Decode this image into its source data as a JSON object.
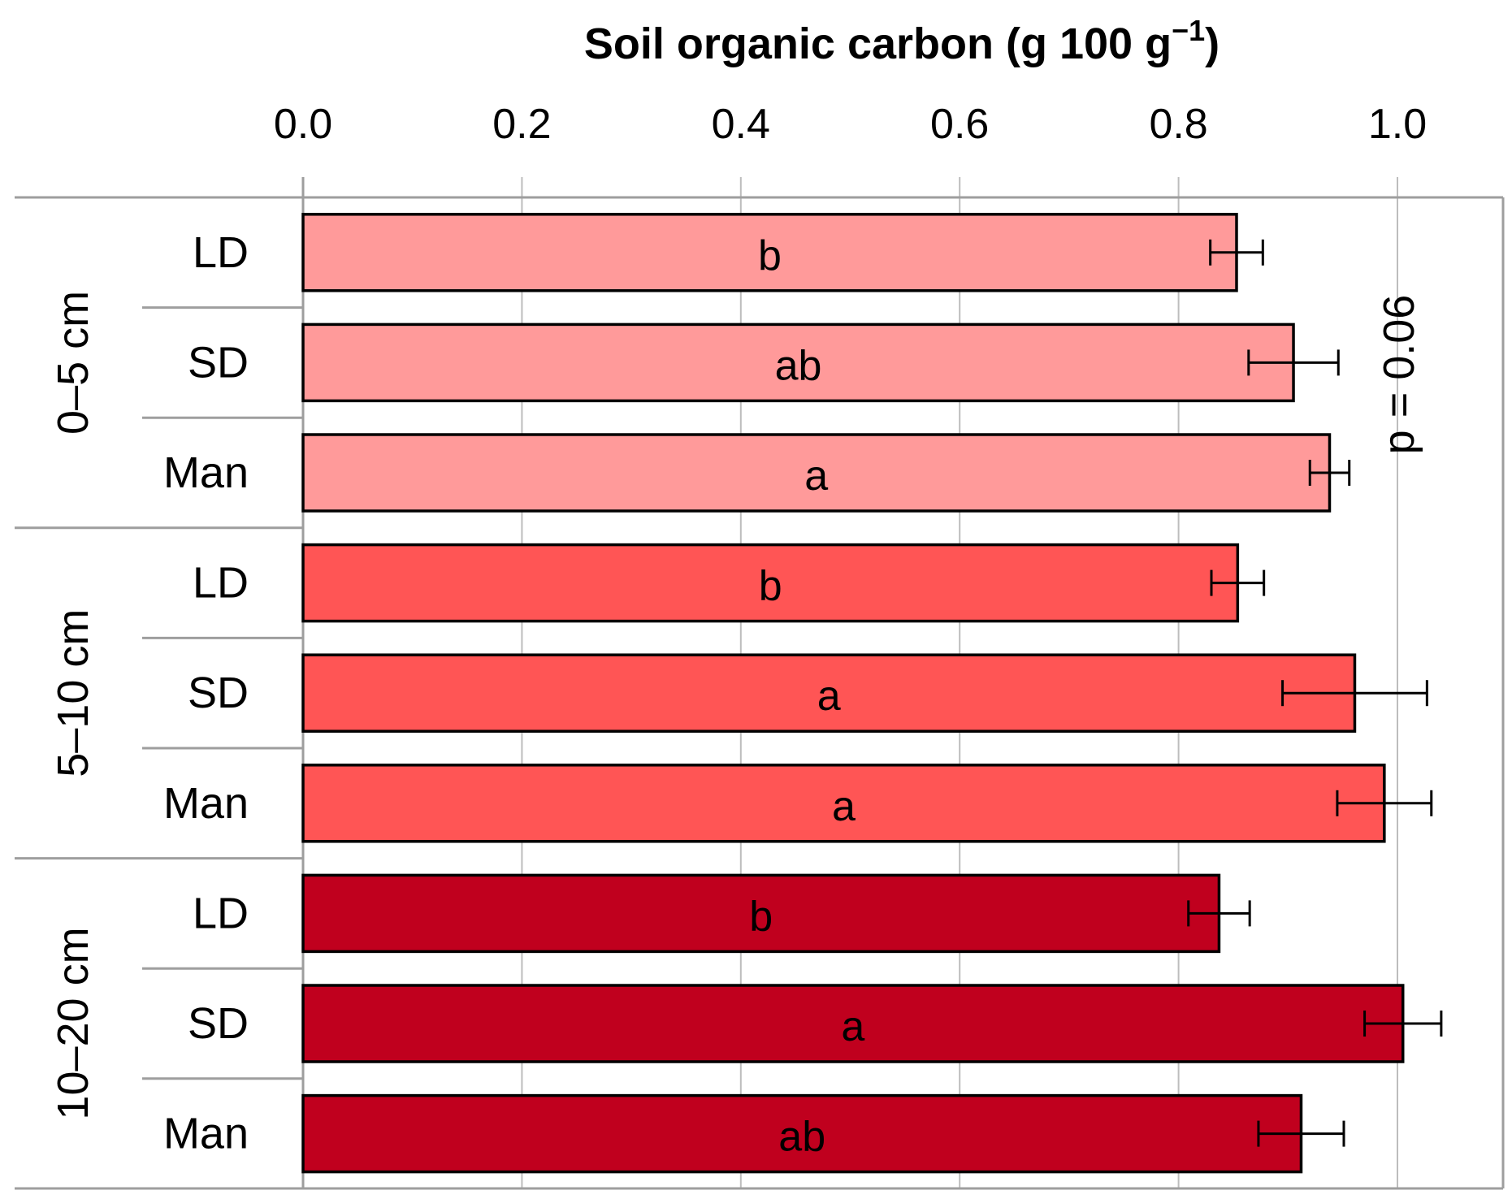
{
  "chart_data": {
    "type": "bar",
    "orientation": "horizontal",
    "title": "Soil organic carbon (g 100 g",
    "title_superscript": "−1",
    "title_suffix": ")",
    "xlim": [
      0.0,
      1.0
    ],
    "xticks": [
      "0.0",
      "0.2",
      "0.4",
      "0.6",
      "0.8",
      "1.0"
    ],
    "xtick_values": [
      0.0,
      0.2,
      0.4,
      0.6,
      0.8,
      1.0
    ],
    "axis_position": "top",
    "grid": true,
    "groups": [
      {
        "depth": "0–5 cm",
        "color": "#ff9a9a",
        "significance": "p = 0.06",
        "bars": [
          {
            "category": "LD",
            "value": 0.853,
            "error": 0.024,
            "letter": "b"
          },
          {
            "category": "SD",
            "value": 0.905,
            "error": 0.041,
            "letter": "ab"
          },
          {
            "category": "Man",
            "value": 0.938,
            "error": 0.018,
            "letter": "a"
          }
        ]
      },
      {
        "depth": "5–10 cm",
        "color": "#ff5555",
        "significance": "",
        "bars": [
          {
            "category": "LD",
            "value": 0.854,
            "error": 0.024,
            "letter": "b"
          },
          {
            "category": "SD",
            "value": 0.961,
            "error": 0.066,
            "letter": "a"
          },
          {
            "category": "Man",
            "value": 0.988,
            "error": 0.043,
            "letter": "a"
          }
        ]
      },
      {
        "depth": "10–20 cm",
        "color": "#c0001e",
        "significance": "",
        "bars": [
          {
            "category": "LD",
            "value": 0.837,
            "error": 0.028,
            "letter": "b"
          },
          {
            "category": "SD",
            "value": 1.005,
            "error": 0.035,
            "letter": "a"
          },
          {
            "category": "Man",
            "value": 0.912,
            "error": 0.039,
            "letter": "ab"
          }
        ]
      }
    ]
  }
}
